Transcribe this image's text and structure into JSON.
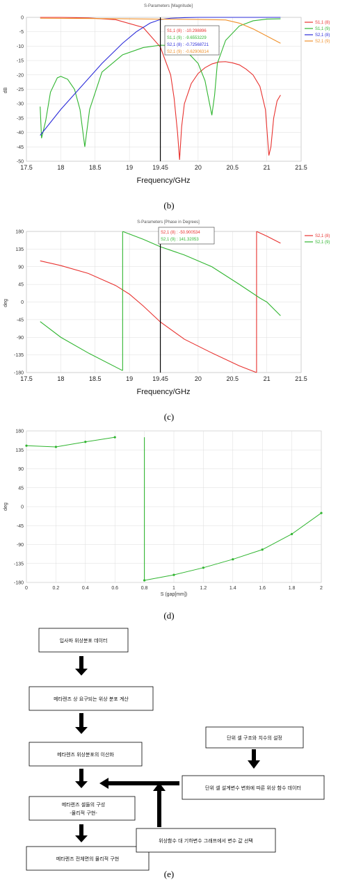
{
  "chart_data": [
    {
      "id": "b",
      "type": "line",
      "title": "S-Parameters [Magnitude]",
      "xlabel": "Frequency/GHz",
      "ylabel": "dB",
      "caption": "(b)",
      "xlim": [
        17.5,
        21.5
      ],
      "ylim": [
        -50,
        0
      ],
      "xticks": [
        "17.5",
        "18",
        "18.5",
        "19",
        "19.45",
        "20",
        "20.5",
        "21",
        "21.5"
      ],
      "xtick_values": [
        17.5,
        18,
        18.5,
        19,
        19.45,
        20,
        20.5,
        21,
        21.5
      ],
      "yticks": [
        "0",
        "-5",
        "-10",
        "-15",
        "-20",
        "-25",
        "-30",
        "-35",
        "-40",
        "-45",
        "-50"
      ],
      "ytick_values": [
        0,
        -5,
        -10,
        -15,
        -20,
        -25,
        -30,
        -35,
        -40,
        -45,
        -50
      ],
      "marker_x": 19.45,
      "marker_labels": [
        {
          "text": "S1,1 (8) : -10.298896",
          "color": "#e8312e"
        },
        {
          "text": "S1,1 (9) : -9.6553229",
          "color": "#2fb52f"
        },
        {
          "text": "S2,1 (8) : -0.72568721",
          "color": "#2b2bd9"
        },
        {
          "text": "S2,1 (9) : -0.62906314",
          "color": "#f0902a"
        }
      ],
      "series": [
        {
          "name": "S1,1 (8)",
          "color": "#e8312e",
          "x": [
            17.7,
            18.0,
            18.4,
            18.8,
            19.2,
            19.45,
            19.6,
            19.65,
            19.7,
            19.73,
            19.76,
            19.8,
            19.9,
            20.0,
            20.1,
            20.2,
            20.3,
            20.4,
            20.5,
            20.6,
            20.7,
            20.8,
            20.9,
            20.98,
            21.03,
            21.06,
            21.1,
            21.15,
            21.2
          ],
          "y": [
            0,
            0,
            -0.2,
            -0.8,
            -3.5,
            -10.3,
            -20,
            -28,
            -40,
            -49.5,
            -38,
            -30,
            -23,
            -19.5,
            -17.5,
            -16.2,
            -15.5,
            -15.4,
            -15.8,
            -16.5,
            -18,
            -20,
            -24,
            -32,
            -48,
            -45,
            -35,
            -29,
            -27
          ]
        },
        {
          "name": "S1,1 (9)",
          "color": "#2fb52f",
          "x": [
            17.7,
            17.72,
            17.78,
            17.85,
            17.95,
            18.0,
            18.1,
            18.2,
            18.28,
            18.35,
            18.42,
            18.6,
            18.9,
            19.2,
            19.45,
            19.6,
            19.8,
            20.0,
            20.1,
            20.2,
            20.24,
            20.28,
            20.4,
            20.6,
            20.8,
            21.0,
            21.2
          ],
          "y": [
            -31,
            -42,
            -36,
            -26,
            -21,
            -20.5,
            -21.5,
            -25,
            -32,
            -45,
            -32,
            -19,
            -13,
            -10.5,
            -9.66,
            -9.8,
            -11,
            -16,
            -22,
            -34,
            -27,
            -16,
            -8,
            -3,
            -1.2,
            -0.6,
            -0.5
          ]
        },
        {
          "name": "S2,1 (8)",
          "color": "#2b2bd9",
          "x": [
            17.7,
            18.0,
            18.3,
            18.6,
            18.9,
            19.1,
            19.3,
            19.45,
            19.6,
            19.8,
            20.0,
            20.5,
            21.0,
            21.2
          ],
          "y": [
            -41,
            -32,
            -24,
            -16,
            -9,
            -5,
            -2,
            -0.73,
            -0.3,
            -0.1,
            0,
            0,
            0,
            0
          ]
        },
        {
          "name": "S2,1 (9)",
          "color": "#f0902a",
          "x": [
            17.7,
            18.5,
            19.0,
            19.45,
            20.0,
            20.4,
            20.6,
            20.8,
            21.0,
            21.2
          ],
          "y": [
            -0.3,
            -0.4,
            -0.5,
            -0.63,
            -0.7,
            -0.9,
            -2,
            -4,
            -6.5,
            -9
          ]
        }
      ],
      "legend": "right"
    },
    {
      "id": "c",
      "type": "line",
      "title": "S-Parameters [Phase in Degrees]",
      "xlabel": "Frequency/GHz",
      "ylabel": "deg",
      "caption": "(c)",
      "xlim": [
        17.5,
        21.5
      ],
      "ylim": [
        -180,
        180
      ],
      "xticks": [
        "17.5",
        "18",
        "18.5",
        "19",
        "19.45",
        "20",
        "20.5",
        "21",
        "21.5"
      ],
      "xtick_values": [
        17.5,
        18,
        18.5,
        19,
        19.45,
        20,
        20.5,
        21,
        21.5
      ],
      "yticks": [
        "180",
        "135",
        "90",
        "45",
        "0",
        "-45",
        "-90",
        "-135",
        "-180"
      ],
      "ytick_values": [
        180,
        135,
        90,
        45,
        0,
        -45,
        -90,
        -135,
        -180
      ],
      "marker_x": 19.45,
      "marker_labels": [
        {
          "text": "S2,1 (8) : -50.900534",
          "color": "#e8312e"
        },
        {
          "text": "S2,1 (9) : 141.32053",
          "color": "#2fb52f"
        }
      ],
      "series": [
        {
          "name": "S2,1 (8)",
          "color": "#e8312e",
          "x": [
            17.7,
            18.0,
            18.4,
            18.8,
            19.0,
            19.2,
            19.45,
            19.8,
            20.2,
            20.6,
            20.85,
            20.851,
            21.0,
            21.2
          ],
          "y": [
            105,
            93,
            73,
            42,
            20,
            -10,
            -51,
            -95,
            -130,
            -163,
            -180,
            180,
            168,
            150
          ]
        },
        {
          "name": "S2,1 (9)",
          "color": "#2fb52f",
          "x": [
            17.7,
            18.0,
            18.4,
            18.9,
            18.901,
            19.2,
            19.45,
            19.8,
            20.2,
            20.6,
            20.9,
            21.0,
            21.2
          ],
          "y": [
            -50,
            -90,
            -130,
            -175,
            180,
            160,
            141,
            120,
            90,
            45,
            10,
            0,
            -35
          ]
        }
      ],
      "legend": "right"
    },
    {
      "id": "d",
      "type": "line",
      "xlabel": "S (gap[mm])",
      "ylabel": "deg",
      "caption": "(d)",
      "xlim": [
        0,
        2
      ],
      "ylim": [
        -180,
        180
      ],
      "xticks": [
        "0",
        "0.2",
        "0.4",
        "0.6",
        "0.8",
        "1",
        "1.2",
        "1.4",
        "1.6",
        "1.8",
        "2"
      ],
      "xtick_values": [
        0,
        0.2,
        0.4,
        0.6,
        0.8,
        1,
        1.2,
        1.4,
        1.6,
        1.8,
        2
      ],
      "yticks": [
        "180",
        "135",
        "90",
        "45",
        "0",
        "-45",
        "-90",
        "-135",
        "-180"
      ],
      "ytick_values": [
        180,
        135,
        90,
        45,
        0,
        -45,
        -90,
        -135,
        -180
      ],
      "series": [
        {
          "color": "#2fb52f",
          "x": [
            0,
            0.2,
            0.4,
            0.6,
            0.8,
            1.0,
            1.2,
            1.4,
            1.6,
            1.8,
            2.0
          ],
          "y": [
            145,
            142,
            154,
            165,
            -175,
            -162,
            -145,
            -125,
            -102,
            -65,
            -15
          ]
        }
      ]
    }
  ],
  "flowchart": {
    "caption": "(e)",
    "boxes": [
      "입사파 위상분포 데이터",
      "메타렌즈 상 요구되는 위상 분포 계산",
      "메타렌즈 위상분포의 이산화",
      "메타렌즈 셀들의 구성",
      "-물리적 구현-",
      "메타렌즈 전체면의 물리적 구현",
      "단위 셀 구조와 치수의 설정",
      "단위 셀 설계변수 변화에 따른 위상 함수 데이터",
      "위상함수 대 기하변수 그래프에서 변수 값 선택"
    ]
  }
}
